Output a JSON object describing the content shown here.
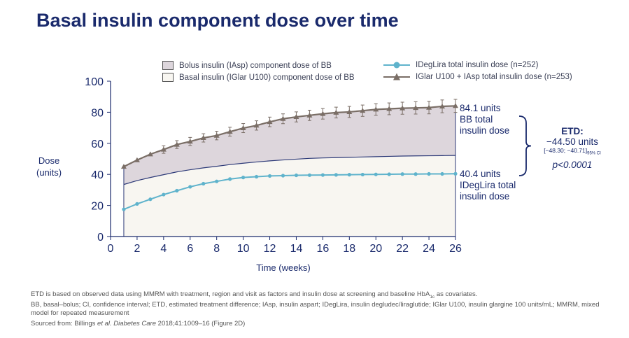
{
  "slide": {
    "title": "Basal insulin component dose over time"
  },
  "legend": {
    "bolus_area": "Bolus insulin (IAsp) component dose of BB",
    "basal_area": "Basal insulin (IGlar U100) component dose of BB",
    "ideglira_series": "IDegLira total insulin dose (n=252)",
    "bb_series": "IGlar U100 + IAsp total insulin dose (n=253)"
  },
  "annotations": {
    "bb_value": "84.1 units",
    "bb_line1": "BB total",
    "bb_line2": "insulin dose",
    "ideg_value": "40.4 units",
    "ideg_line1": "IDegLira total",
    "ideg_line2": "insulin dose",
    "etd_label": "ETD:",
    "etd_value": "−44.50 units",
    "etd_ci": "[−48.30; −40.71]",
    "etd_ci_sub": "95% CI",
    "etd_p": "p<0.0001"
  },
  "footnotes": {
    "line1": "ETD is based on observed data using MMRM with treatment, region and visit as factors and insulin dose at screening and baseline HbA1c as covariates.",
    "line2": "BB, basal–bolus; CI, confidence interval; ETD, estimated treatment difference; IAsp, insulin aspart; IDegLira, insulin degludec/liraglutide; IGlar U100, insulin glargine 100 units/mL; MMRM, mixed model for repeated measurement",
    "line3_prefix": "Sourced from: Billings ",
    "line3_italic": "et al. Diabetes Care",
    "line3_suffix": " 2018;41:1009–16 (Figure 2D)"
  },
  "chart_data": {
    "type": "line",
    "xlabel": "Time (weeks)",
    "ylabel": "Dose\n(units)",
    "xlim": [
      0,
      26
    ],
    "ylim": [
      0,
      100
    ],
    "xticks": [
      0,
      2,
      4,
      6,
      8,
      10,
      12,
      14,
      16,
      18,
      20,
      22,
      24,
      26
    ],
    "yticks": [
      0,
      20,
      40,
      60,
      80,
      100
    ],
    "x": [
      1,
      2,
      3,
      4,
      5,
      6,
      7,
      8,
      9,
      10,
      11,
      12,
      13,
      14,
      15,
      16,
      17,
      18,
      19,
      20,
      21,
      22,
      23,
      24,
      25,
      26
    ],
    "series": [
      {
        "name": "IGlar U100 + IAsp total insulin dose (n=253)",
        "color": "#7a6e66",
        "marker": "triangle",
        "error_bars": true,
        "values": [
          45.0,
          49.2,
          53.0,
          56.0,
          59.2,
          61.2,
          63.5,
          65.0,
          67.5,
          69.8,
          71.5,
          73.8,
          75.8,
          77.0,
          78.0,
          79.0,
          79.8,
          80.2,
          81.0,
          81.8,
          82.2,
          82.6,
          82.8,
          83.0,
          83.8,
          84.1
        ]
      },
      {
        "name": "IDegLira total insulin dose (n=252)",
        "color": "#5fb3cc",
        "marker": "circle",
        "values": [
          17.5,
          21.0,
          24.0,
          27.0,
          29.5,
          32.0,
          34.0,
          35.5,
          37.0,
          38.0,
          38.5,
          39.0,
          39.2,
          39.4,
          39.5,
          39.6,
          39.7,
          39.8,
          39.9,
          40.0,
          40.1,
          40.2,
          40.2,
          40.3,
          40.3,
          40.4
        ]
      },
      {
        "name": "Basal insulin (IGlar U100) component dose of BB",
        "color": "#2d3a78",
        "values": [
          33.5,
          36.0,
          38.0,
          39.8,
          41.6,
          43.0,
          44.2,
          45.2,
          46.3,
          47.2,
          48.0,
          48.7,
          49.3,
          49.8,
          50.3,
          50.6,
          50.8,
          51.0,
          51.2,
          51.4,
          51.6,
          51.8,
          51.9,
          52.0,
          52.1,
          52.2
        ]
      }
    ],
    "colors": {
      "bolus_area": "#ddd6dc",
      "basal_area": "#f8f6f1",
      "axis": "#1a2a6c",
      "etd_bracket": "#1a2a6c"
    }
  }
}
